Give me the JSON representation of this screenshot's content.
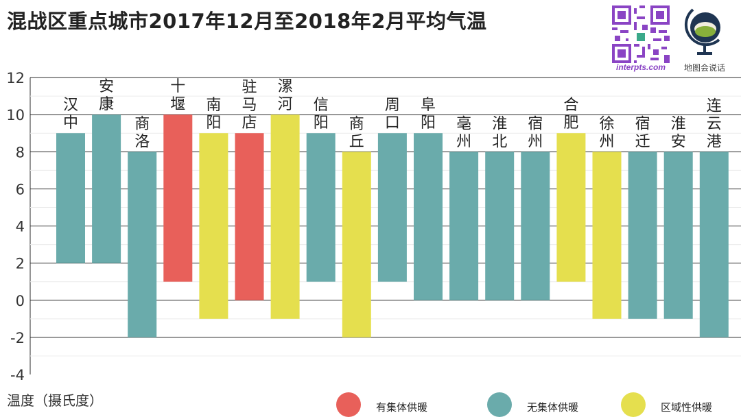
{
  "title": "混战区重点城市2017年12月至2018年2月平均气温",
  "branding": {
    "qr_caption": "interpts.com",
    "qr_icon": "qr-code-icon",
    "logo_caption": "地图会说话",
    "logo_icon": "globe-logo-icon"
  },
  "colors": {
    "central_heating": "#e8605a",
    "no_central_heating": "#6aabab",
    "regional_heating": "#e5df4e"
  },
  "legend": [
    {
      "label": "有集体供暖",
      "key": "central_heating",
      "color": "#e8605a"
    },
    {
      "label": "无集体供暖",
      "key": "no_central_heating",
      "color": "#6aabab"
    },
    {
      "label": "区域性供暖",
      "key": "regional_heating",
      "color": "#e5df4e"
    }
  ],
  "chart_data": {
    "type": "bar",
    "subtype": "floating-range",
    "title": "混战区重点城市2017年12月至2018年2月平均气温",
    "ylabel": "温度（摄氏度）",
    "xlabel": "",
    "ylim": [
      -4,
      12
    ],
    "yticks": [
      -4,
      -2,
      0,
      2,
      4,
      6,
      8,
      10,
      12
    ],
    "grid": true,
    "categories": [
      "汉中",
      "安康",
      "商洛",
      "十堰",
      "南阳",
      "驻马店",
      "漯河",
      "信阳",
      "商丘",
      "周口",
      "阜阳",
      "亳州",
      "淮北",
      "宿州",
      "合肥",
      "徐州",
      "宿迁",
      "淮安",
      "连云港"
    ],
    "label_lines": [
      [
        "汉",
        "中"
      ],
      [
        "安",
        "康"
      ],
      [
        "商",
        "洛"
      ],
      [
        "十",
        "堰"
      ],
      [
        "南",
        "阳"
      ],
      [
        "驻",
        "马",
        "店"
      ],
      [
        "漯",
        "河"
      ],
      [
        "信",
        "阳"
      ],
      [
        "商",
        "丘"
      ],
      [
        "周",
        "口"
      ],
      [
        "阜",
        "阳"
      ],
      [
        "亳",
        "州"
      ],
      [
        "淮",
        "北"
      ],
      [
        "宿",
        "州"
      ],
      [
        "合",
        "肥"
      ],
      [
        "徐",
        "州"
      ],
      [
        "宿",
        "迁"
      ],
      [
        "淮",
        "安"
      ],
      [
        "连",
        "云",
        "港"
      ]
    ],
    "low": [
      2,
      2,
      -2,
      1,
      -1,
      0,
      -1,
      1,
      -2,
      1,
      0,
      0,
      0,
      0,
      1,
      -1,
      -1,
      -1,
      -2
    ],
    "high": [
      9,
      10,
      8,
      10,
      9,
      9,
      10,
      9,
      8,
      9,
      9,
      8,
      8,
      8,
      9,
      8,
      8,
      8,
      8
    ],
    "heating": [
      "no_central_heating",
      "no_central_heating",
      "no_central_heating",
      "central_heating",
      "regional_heating",
      "central_heating",
      "regional_heating",
      "no_central_heating",
      "regional_heating",
      "no_central_heating",
      "no_central_heating",
      "no_central_heating",
      "no_central_heating",
      "no_central_heating",
      "regional_heating",
      "regional_heating",
      "no_central_heating",
      "no_central_heating",
      "no_central_heating"
    ]
  }
}
